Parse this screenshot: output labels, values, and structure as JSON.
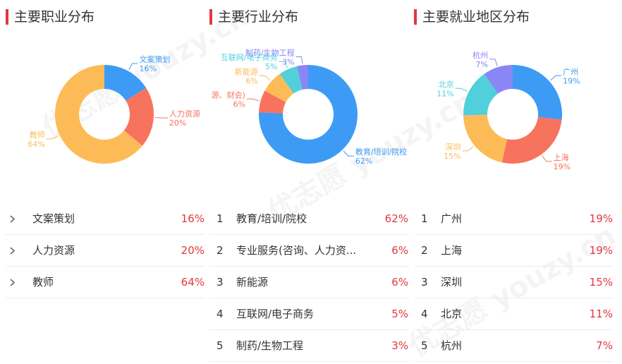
{
  "watermark": {
    "text": "youzy.cn",
    "logo": "优志愿"
  },
  "panels": [
    {
      "title": "主要职业分布",
      "list_style": "chevron",
      "chart_data": {
        "type": "pie",
        "title": "主要职业分布",
        "categories": [
          "文案策划",
          "人力资源",
          "教师"
        ],
        "values": [
          16,
          20,
          64
        ],
        "labels": [
          "16%",
          "20%",
          "64%"
        ],
        "colors": [
          "#3d9bf5",
          "#f8735d",
          "#fdbb58"
        ]
      },
      "rows": [
        {
          "index": "",
          "name": "文案策划",
          "pct": "16%"
        },
        {
          "index": "",
          "name": "人力资源",
          "pct": "20%"
        },
        {
          "index": "",
          "name": "教师",
          "pct": "64%"
        }
      ]
    },
    {
      "title": "主要行业分布",
      "list_style": "number",
      "chart_data": {
        "type": "pie",
        "title": "主要行业分布",
        "categories": [
          "教育/培训/院校",
          "专业服务(咨询、人力资源、财会)",
          "新能源",
          "互联网/电子商务",
          "制药/生物工程"
        ],
        "chart_labels": [
          "教育/培训/院校",
          "源、财会)",
          "新能源",
          "互联网/电子商务",
          "制药/生物工程"
        ],
        "values": [
          62,
          6,
          6,
          5,
          3
        ],
        "labels": [
          "62%",
          "6%",
          "6%",
          "5%",
          "3%"
        ],
        "colors": [
          "#3d9bf5",
          "#f8735d",
          "#fdbb58",
          "#4fd0db",
          "#8a86f5"
        ]
      },
      "rows": [
        {
          "index": "1",
          "name": "教育/培训/院校",
          "pct": "62%"
        },
        {
          "index": "2",
          "name": "专业服务(咨询、人力资...",
          "pct": "6%"
        },
        {
          "index": "3",
          "name": "新能源",
          "pct": "6%"
        },
        {
          "index": "4",
          "name": "互联网/电子商务",
          "pct": "5%"
        },
        {
          "index": "5",
          "name": "制药/生物工程",
          "pct": "3%"
        }
      ]
    },
    {
      "title": "主要就业地区分布",
      "list_style": "number",
      "chart_data": {
        "type": "pie",
        "title": "主要就业地区分布",
        "categories": [
          "广州",
          "上海",
          "深圳",
          "北京",
          "杭州"
        ],
        "values": [
          19,
          19,
          15,
          11,
          7
        ],
        "labels": [
          "19%",
          "19%",
          "15%",
          "11%",
          "7%"
        ],
        "colors": [
          "#3d9bf5",
          "#f8735d",
          "#fdbb58",
          "#4fd0db",
          "#8a86f5"
        ]
      },
      "rows": [
        {
          "index": "1",
          "name": "广州",
          "pct": "19%"
        },
        {
          "index": "2",
          "name": "上海",
          "pct": "19%"
        },
        {
          "index": "3",
          "name": "深圳",
          "pct": "15%"
        },
        {
          "index": "4",
          "name": "北京",
          "pct": "11%"
        },
        {
          "index": "5",
          "name": "杭州",
          "pct": "7%"
        }
      ]
    }
  ]
}
